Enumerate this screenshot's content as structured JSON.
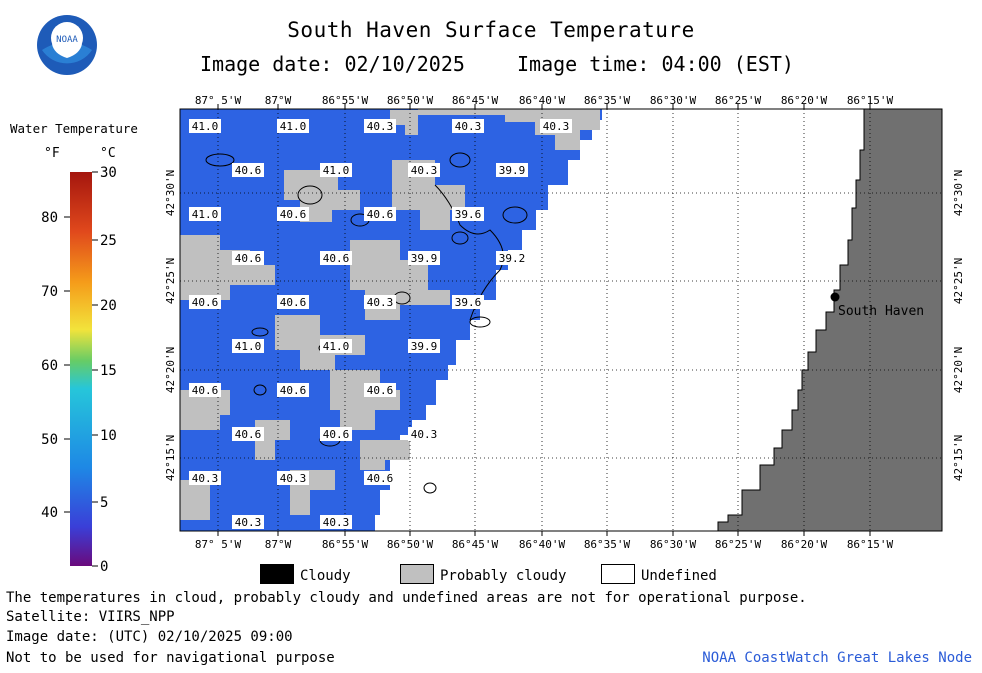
{
  "header": {
    "title": "South Haven Surface Temperature",
    "date_label": "Image date: 02/10/2025",
    "time_label": "Image time: 04:00 (EST)"
  },
  "logo": {
    "text": "NOAA"
  },
  "colorbar": {
    "title": "Water Temperature",
    "unit_f": "°F",
    "unit_c": "°C",
    "f_ticks": [
      "80",
      "70",
      "60",
      "50",
      "40"
    ],
    "c_ticks": [
      "30",
      "25",
      "20",
      "15",
      "10",
      "5",
      "0"
    ],
    "colors": [
      "#4b0b7f",
      "#3a3fd8",
      "#1e88e5",
      "#26c6da",
      "#66cc66",
      "#f2e33b",
      "#f59c1a",
      "#e0481c",
      "#a4160e"
    ]
  },
  "map": {
    "lon_labels": [
      "87° 5'W",
      "87°W",
      "86°55'W",
      "86°50'W",
      "86°45'W",
      "86°40'W",
      "86°35'W",
      "86°30'W",
      "86°25'W",
      "86°20'W",
      "86°15'W"
    ],
    "lat_labels": [
      "42°30'N",
      "42°25'N",
      "42°20'N",
      "42°15'N"
    ],
    "city": "South Haven",
    "water_color": "#2d63e3",
    "cloud_color": "#c0c0c0",
    "land_color": "#707070",
    "temps": [
      {
        "v": "41.0"
      },
      {
        "v": "41.0"
      },
      {
        "v": "40.3"
      },
      {
        "v": "40.3"
      },
      {
        "v": "40.3"
      },
      {
        "v": "40.6"
      },
      {
        "v": "41.0"
      },
      {
        "v": "40.3"
      },
      {
        "v": "39.9"
      },
      {
        "v": "41.0"
      },
      {
        "v": "40.6"
      },
      {
        "v": "40.6"
      },
      {
        "v": "39.6"
      },
      {
        "v": "40.6"
      },
      {
        "v": "40.6"
      },
      {
        "v": "39.9"
      },
      {
        "v": "39.2"
      },
      {
        "v": "40.6"
      },
      {
        "v": "40.6"
      },
      {
        "v": "40.3"
      },
      {
        "v": "39.6"
      },
      {
        "v": "41.0"
      },
      {
        "v": "41.0"
      },
      {
        "v": "39.9"
      },
      {
        "v": "40.6"
      },
      {
        "v": "40.6"
      },
      {
        "v": "40.6"
      },
      {
        "v": "40.6"
      },
      {
        "v": "40.6"
      },
      {
        "v": "40.3"
      },
      {
        "v": "40.3"
      },
      {
        "v": "40.3"
      },
      {
        "v": "40.6"
      },
      {
        "v": "40.3"
      },
      {
        "v": "40.3"
      }
    ]
  },
  "legend": {
    "cloudy": "Cloudy",
    "probably_cloudy": "Probably cloudy",
    "undefined": "Undefined"
  },
  "footer": {
    "note": "The temperatures in cloud, probably cloudy and undefined areas are not for operational purpose.",
    "satellite": "Satellite: VIIRS_NPP",
    "utc_date": "Image date: (UTC) 02/10/2025  09:00",
    "nav_warning": "Not to be used for navigational purpose",
    "credit": "NOAA CoastWatch Great Lakes Node"
  }
}
